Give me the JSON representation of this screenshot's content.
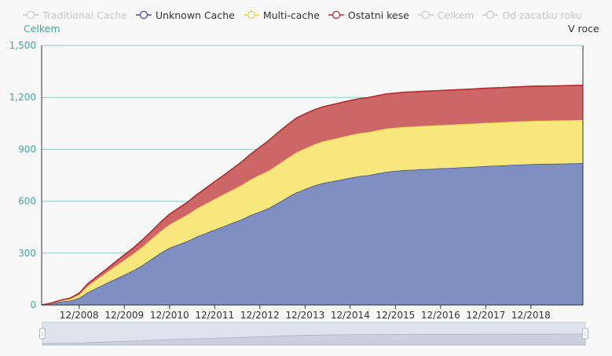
{
  "legend": [
    {
      "label": "Traditional Cache",
      "color": "#cccccc",
      "active": false
    },
    {
      "label": "Unknown Cache",
      "color": "#3d4f96",
      "active": true
    },
    {
      "label": "Multi-cache",
      "color": "#f2d23c",
      "active": true
    },
    {
      "label": "Ostatni kese",
      "color": "#b52a2a",
      "active": true
    },
    {
      "label": "Celkem",
      "color": "#cccccc",
      "active": false
    },
    {
      "label": "Od zacatku roku",
      "color": "#cccccc",
      "active": false
    }
  ],
  "left_axis_caption": "Celkem",
  "right_axis_caption": "V roce",
  "chart_data": {
    "type": "area",
    "stacked": true,
    "ylim": [
      0,
      1500
    ],
    "yticks": [
      0,
      300,
      600,
      900,
      1200,
      1500
    ],
    "ytick_labels": [
      "0",
      "300",
      "600",
      "900",
      "1,200",
      "1,500"
    ],
    "xlim": [
      2007.17,
      2019.15
    ],
    "xticks": [
      2008,
      2009,
      2010,
      2011,
      2012,
      2013,
      2014,
      2015,
      2016,
      2017,
      2018
    ],
    "xtick_labels": [
      "12/2008",
      "12/2009",
      "12/2010",
      "12/2011",
      "12/2012",
      "12/2013",
      "12/2014",
      "12/2015",
      "12/2016",
      "12/2017",
      "12/2018"
    ],
    "grid": true,
    "legend_position": "top-left",
    "x": [
      2007.17,
      2007.4,
      2007.6,
      2007.8,
      2008.0,
      2008.2,
      2008.4,
      2008.6,
      2008.8,
      2009.0,
      2009.2,
      2009.4,
      2009.6,
      2009.8,
      2010.0,
      2010.2,
      2010.4,
      2010.6,
      2010.8,
      2011.0,
      2011.2,
      2011.4,
      2011.6,
      2011.8,
      2012.0,
      2012.2,
      2012.4,
      2012.6,
      2012.8,
      2013.0,
      2013.2,
      2013.4,
      2013.6,
      2013.8,
      2014.0,
      2014.2,
      2014.4,
      2014.6,
      2014.8,
      2015.0,
      2015.2,
      2015.4,
      2015.6,
      2015.8,
      2016.0,
      2016.2,
      2016.4,
      2016.6,
      2016.8,
      2017.0,
      2017.2,
      2017.4,
      2017.6,
      2017.8,
      2018.0,
      2018.2,
      2018.4,
      2018.6,
      2018.8,
      2019.0,
      2019.15
    ],
    "series": [
      {
        "name": "Unknown Cache",
        "color": "#3d4f96",
        "fill": "#7f8fc2",
        "values": [
          0,
          10,
          20,
          25,
          40,
          75,
          100,
          125,
          150,
          175,
          200,
          230,
          265,
          300,
          330,
          350,
          370,
          395,
          415,
          435,
          455,
          475,
          495,
          520,
          540,
          560,
          590,
          620,
          650,
          670,
          690,
          705,
          715,
          725,
          735,
          745,
          750,
          760,
          770,
          775,
          780,
          782,
          785,
          787,
          790,
          792,
          795,
          797,
          800,
          803,
          805,
          807,
          810,
          812,
          814,
          815,
          816,
          817,
          818,
          819,
          820
        ]
      },
      {
        "name": "Multi-cache",
        "color": "#f2d23c",
        "fill": "#f8e77d",
        "values": [
          0,
          2,
          6,
          10,
          20,
          38,
          50,
          62,
          74,
          85,
          96,
          106,
          116,
          126,
          135,
          144,
          153,
          162,
          170,
          178,
          185,
          192,
          199,
          206,
          212,
          217,
          222,
          227,
          231,
          235,
          238,
          241,
          243,
          245,
          247,
          248,
          249,
          250,
          250,
          250,
          250,
          250,
          250,
          250,
          250,
          250,
          250,
          250,
          250,
          250,
          250,
          250,
          250,
          250,
          250,
          250,
          250,
          250,
          250,
          250,
          250
        ]
      },
      {
        "name": "Ostatni kese",
        "color": "#b52a2a",
        "fill": "#cd6767",
        "values": [
          0,
          1,
          3,
          5,
          8,
          12,
          16,
          20,
          25,
          30,
          35,
          40,
          45,
          52,
          60,
          66,
          72,
          80,
          90,
          100,
          110,
          122,
          134,
          147,
          160,
          175,
          185,
          192,
          198,
          200,
          200,
          200,
          200,
          200,
          200,
          200,
          200,
          200,
          200,
          200,
          200,
          200,
          200,
          200,
          200,
          200,
          200,
          200,
          200,
          200,
          200,
          200,
          200,
          200,
          200,
          200,
          200,
          200,
          200,
          200,
          200
        ]
      }
    ]
  }
}
